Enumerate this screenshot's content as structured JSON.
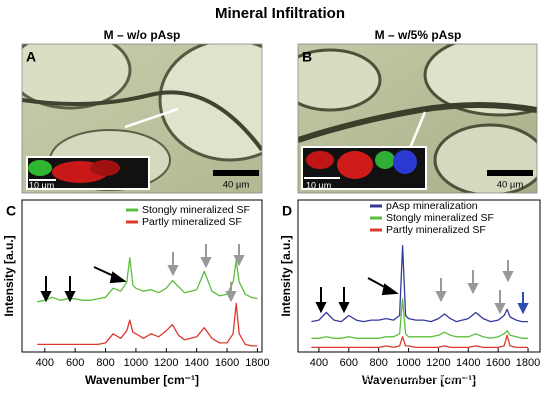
{
  "figure": {
    "title": "Mineral Infiltration",
    "panels": [
      {
        "letter": "A",
        "header": "M – w/o pAsp",
        "inset_scale": "10 µm",
        "scale": "40 µm"
      },
      {
        "letter": "B",
        "header": "M – w/5% pAsp",
        "inset_scale": "10 µm",
        "scale": "40 µm"
      }
    ],
    "watermark": "知乎 @Engineeringforlife"
  },
  "chart_data": [
    {
      "type": "line",
      "panel": "C",
      "xlabel": "Wavenumber [cm⁻¹]",
      "ylabel": "Intensity [a.u.]",
      "x": [
        350,
        400,
        450,
        500,
        550,
        600,
        650,
        700,
        750,
        800,
        850,
        900,
        940,
        960,
        980,
        1000,
        1050,
        1100,
        1150,
        1200,
        1240,
        1280,
        1320,
        1360,
        1400,
        1450,
        1500,
        1550,
        1600,
        1640,
        1660,
        1680,
        1720,
        1760,
        1800
      ],
      "xlim": [
        250,
        1830
      ],
      "xticks": [
        400,
        600,
        800,
        1000,
        1200,
        1400,
        1600,
        1800
      ],
      "ylim": [
        0,
        100
      ],
      "series": [
        {
          "name": "Stongly mineralized SF",
          "color": "#5cbf3c",
          "values": [
            33,
            34,
            36,
            34,
            35,
            35,
            34,
            34,
            35,
            36,
            42,
            40,
            46,
            62,
            44,
            42,
            40,
            41,
            39,
            42,
            47,
            43,
            39,
            40,
            41,
            53,
            40,
            37,
            38,
            46,
            60,
            46,
            38,
            36,
            35
          ]
        },
        {
          "name": "Partly mineralized SF",
          "color": "#dc3a2c",
          "values": [
            5,
            5,
            5,
            5,
            5,
            5,
            5,
            5,
            5,
            6,
            12,
            9,
            14,
            21,
            13,
            12,
            9,
            12,
            10,
            14,
            18,
            11,
            8,
            9,
            10,
            16,
            9,
            6,
            6,
            12,
            32,
            12,
            5,
            4,
            4
          ]
        }
      ]
    },
    {
      "type": "line",
      "panel": "D",
      "xlabel": "Wavenumber [cm⁻¹]",
      "ylabel": "Intensity [a.u.]",
      "x": [
        350,
        400,
        450,
        500,
        550,
        600,
        650,
        700,
        750,
        800,
        850,
        900,
        940,
        960,
        980,
        1000,
        1050,
        1100,
        1150,
        1200,
        1240,
        1280,
        1320,
        1360,
        1400,
        1450,
        1500,
        1550,
        1600,
        1640,
        1660,
        1680,
        1720,
        1760,
        1800
      ],
      "xlim": [
        260,
        1880
      ],
      "xticks": [
        400,
        600,
        800,
        1000,
        1200,
        1400,
        1600,
        1800
      ],
      "ylim": [
        0,
        100
      ],
      "series": [
        {
          "name": "pAsp mineralization",
          "color": "#34399a",
          "values": [
            20,
            21,
            26,
            21,
            20,
            24,
            21,
            20,
            21,
            21,
            22,
            21,
            24,
            70,
            24,
            22,
            21,
            21,
            20,
            22,
            25,
            22,
            20,
            21,
            22,
            26,
            22,
            20,
            21,
            24,
            28,
            23,
            21,
            20,
            20
          ]
        },
        {
          "name": "Stongly mineralized SF",
          "color": "#5cbf3c",
          "values": [
            9,
            9,
            10,
            9,
            9,
            10,
            9,
            9,
            9,
            9,
            10,
            10,
            12,
            35,
            12,
            10,
            10,
            10,
            10,
            11,
            13,
            11,
            10,
            10,
            10,
            12,
            10,
            9,
            10,
            12,
            14,
            11,
            10,
            9,
            9
          ]
        },
        {
          "name": "Partly mineralized SF",
          "color": "#dc3a2c",
          "values": [
            3,
            3,
            3,
            3,
            3,
            3,
            3,
            3,
            3,
            3,
            4,
            3,
            4,
            10,
            4,
            4,
            3,
            3,
            3,
            3,
            4,
            3,
            3,
            3,
            3,
            4,
            3,
            3,
            3,
            4,
            11,
            4,
            3,
            3,
            3
          ]
        }
      ]
    }
  ]
}
